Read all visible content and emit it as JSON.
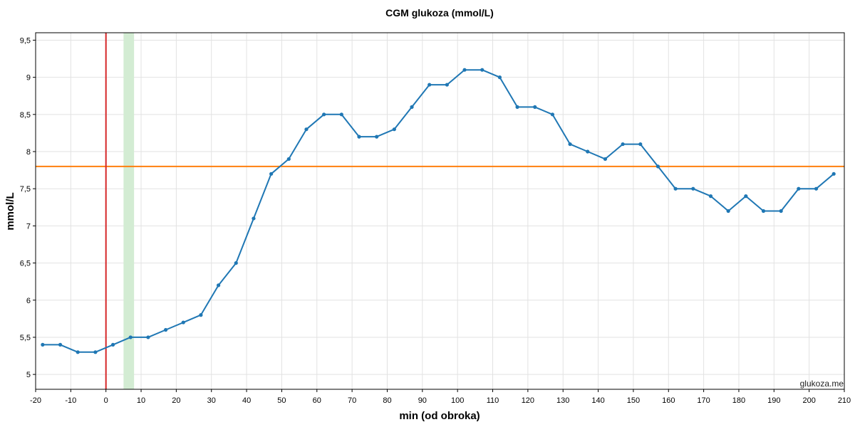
{
  "chart_data": {
    "type": "line",
    "title": "CGM glukoza (mmol/L)",
    "xlabel": "min (od obroka)",
    "ylabel": "mmol/L",
    "xlim": [
      -20,
      210
    ],
    "ylim": [
      4.8,
      9.6
    ],
    "x_ticks": [
      -20,
      -10,
      0,
      10,
      20,
      30,
      40,
      50,
      60,
      70,
      80,
      90,
      100,
      110,
      120,
      130,
      140,
      150,
      160,
      170,
      180,
      190,
      200,
      210
    ],
    "y_ticks": [
      5,
      5.5,
      6,
      6.5,
      7,
      7.5,
      8,
      8.5,
      9,
      9.5
    ],
    "decimal_separator": ",",
    "grid": true,
    "series": [
      {
        "color": "#1f77b4",
        "x": [
          -18,
          -13,
          -8,
          -3,
          2,
          7,
          12,
          17,
          22,
          27,
          32,
          37,
          42,
          47,
          52,
          57,
          62,
          67,
          72,
          77,
          82,
          87,
          92,
          97,
          102,
          107,
          112,
          117,
          122,
          127,
          132,
          137,
          142,
          147,
          152,
          157,
          162,
          167,
          172,
          177,
          182,
          187,
          192,
          197,
          202,
          207
        ],
        "y": [
          5.4,
          5.4,
          5.3,
          5.3,
          5.4,
          5.5,
          5.5,
          5.6,
          5.7,
          5.8,
          6.2,
          6.5,
          7.1,
          7.7,
          7.9,
          8.3,
          8.5,
          8.5,
          8.2,
          8.2,
          8.3,
          8.6,
          8.9,
          8.9,
          9.1,
          9.1,
          9.0,
          8.6,
          8.6,
          8.5,
          8.1,
          8.0,
          7.9,
          8.1,
          8.1,
          7.8,
          7.5,
          7.5,
          7.4,
          7.2,
          7.4,
          7.2,
          7.2,
          7.5,
          7.5,
          7.7
        ]
      }
    ],
    "reference_lines": {
      "horizontal": {
        "y": 7.8,
        "color": "#ff7f0e"
      },
      "vertical": {
        "x": 0,
        "color": "#d62728"
      }
    },
    "shaded_band": {
      "x": [
        5,
        8
      ],
      "color": "#d3ecd3"
    }
  },
  "watermark": "glukoza.me"
}
